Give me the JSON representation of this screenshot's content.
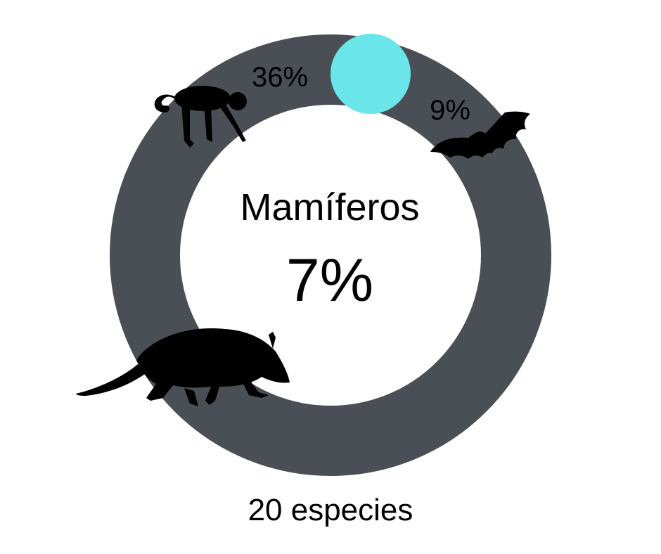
{
  "chart_data": {
    "type": "pie",
    "title": "Mamíferos",
    "value_label": "7%",
    "value": 7,
    "footer": "20 especies",
    "annotations": [
      {
        "label": "36%",
        "icon": "monkey-icon"
      },
      {
        "label": "9%",
        "icon": "bat-icon"
      }
    ],
    "icons": [
      "monkey-icon",
      "bat-icon",
      "opossum-icon"
    ]
  },
  "colors": {
    "ring": "#4a4f56",
    "highlight": "#6ae5ea",
    "background": "#ffffff",
    "text": "#000000"
  }
}
